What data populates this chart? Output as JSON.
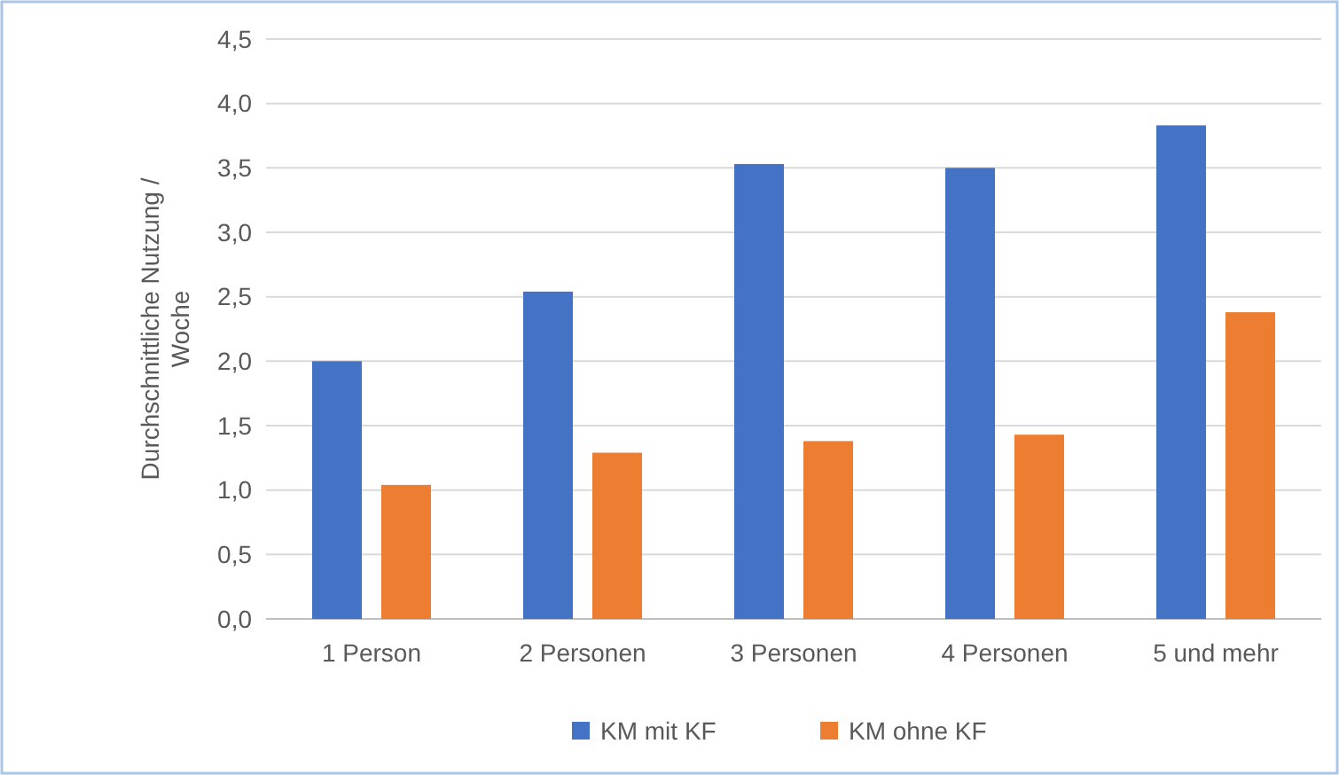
{
  "chart_data": {
    "type": "bar",
    "ylabel": "Durchschnittliche Nutzung / Woche",
    "categories": [
      "1 Person",
      "2 Personen",
      "3 Personen",
      "4 Personen",
      "5 und mehr"
    ],
    "series": [
      {
        "name": "KM mit KF",
        "color": "#4472c4",
        "values": [
          2.0,
          2.54,
          3.53,
          3.5,
          3.83
        ]
      },
      {
        "name": "KM ohne KF",
        "color": "#ed7d31",
        "values": [
          1.04,
          1.29,
          1.38,
          1.43,
          2.38
        ]
      }
    ],
    "ylim": [
      0,
      4.5
    ],
    "yticks": [
      {
        "value": 0,
        "label": "0,0"
      },
      {
        "value": 0.5,
        "label": "0,5"
      },
      {
        "value": 1,
        "label": "1,0"
      },
      {
        "value": 1.5,
        "label": "1,5"
      },
      {
        "value": 2,
        "label": "2,0"
      },
      {
        "value": 2.5,
        "label": "2,5"
      },
      {
        "value": 3,
        "label": "3,0"
      },
      {
        "value": 3.5,
        "label": "3,5"
      },
      {
        "value": 4,
        "label": "4,0"
      },
      {
        "value": 4.5,
        "label": "4,5"
      }
    ],
    "grid": "y",
    "legend": "bottom"
  }
}
